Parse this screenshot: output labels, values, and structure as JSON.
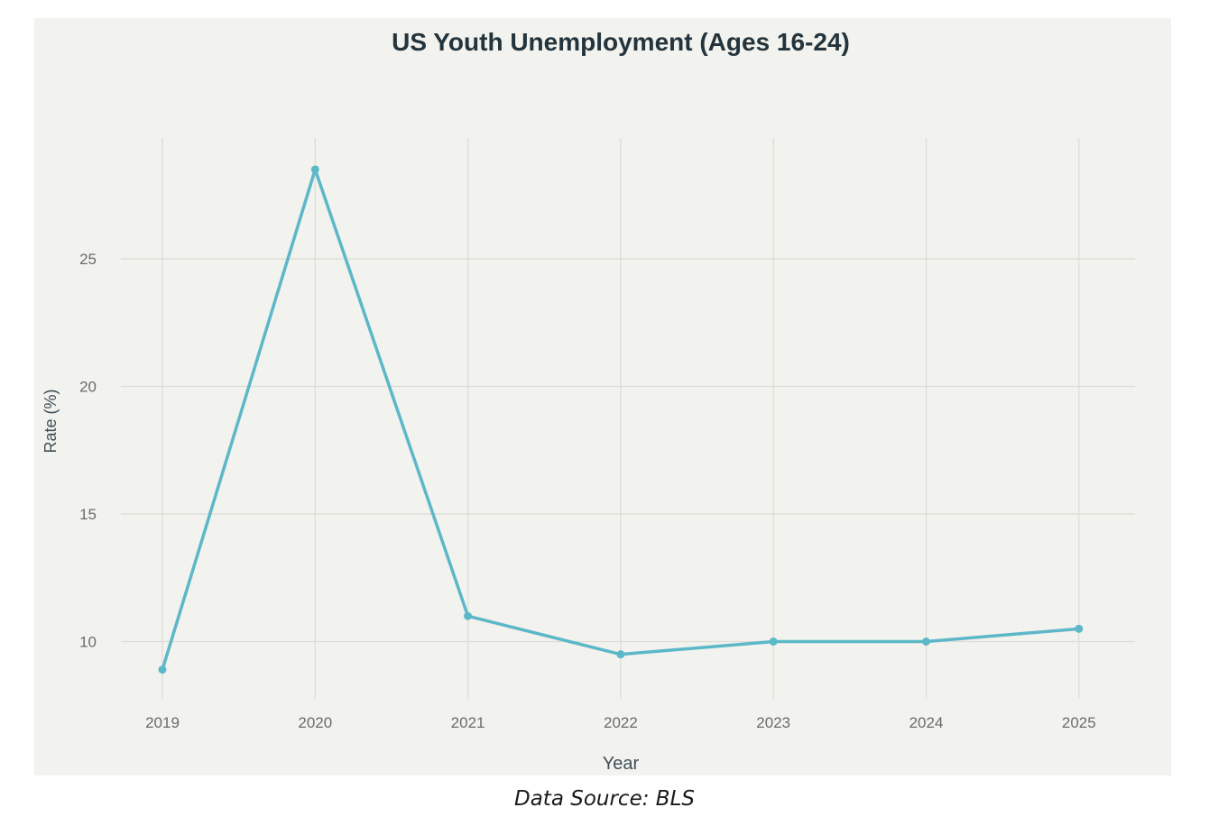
{
  "chart_data": {
    "type": "line",
    "title": "US Youth Unemployment (Ages 16-24)",
    "xlabel": "Year",
    "ylabel": "Rate (%)",
    "categories": [
      "2019",
      "2020",
      "2021",
      "2022",
      "2023",
      "2024",
      "2025"
    ],
    "series": [
      {
        "values": [
          8.9,
          28.5,
          11.0,
          9.5,
          10.0,
          10.0,
          10.5
        ]
      }
    ],
    "yticks": [
      10,
      15,
      20,
      25
    ],
    "ylim": [
      6.9,
      30.0
    ],
    "grid": true,
    "legend": "none",
    "colors": {
      "line": "#5cb8c8",
      "grid": "#dcdcd6",
      "background": "#f2f2ee",
      "title": "#23343d",
      "tick": "#6b6b6b"
    }
  },
  "caption": "Data Source: BLS"
}
